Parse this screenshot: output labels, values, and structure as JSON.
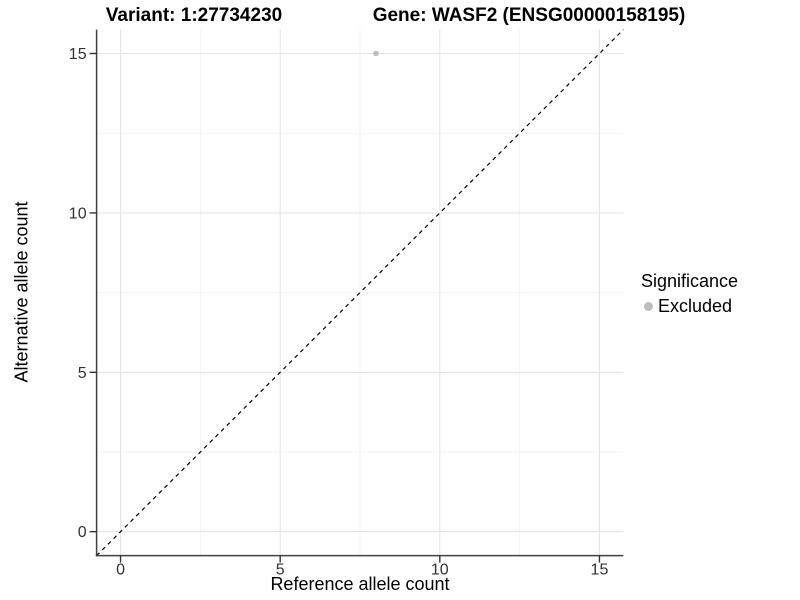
{
  "chart_data": {
    "type": "scatter",
    "title_left": "Variant: 1:27734230",
    "title_right": "Gene: WASF2 (ENSG00000158195)",
    "xlabel": "Reference allele count",
    "ylabel": "Alternative allele count",
    "xlim": [
      -0.75,
      15.75
    ],
    "ylim": [
      -0.75,
      15.75
    ],
    "x_ticks": [
      0,
      5,
      10,
      15
    ],
    "y_ticks": [
      0,
      5,
      10,
      15
    ],
    "x_minor_ticks": [
      2.5,
      7.5,
      12.5
    ],
    "y_minor_ticks": [
      2.5,
      7.5,
      12.5
    ],
    "grid": true,
    "points": [
      {
        "x": 8,
        "y": 15,
        "series": "Excluded"
      }
    ],
    "reference_line": {
      "equation": "y = x",
      "style": "dashed",
      "color": "#000000"
    },
    "legend": {
      "title": "Significance",
      "position": "right",
      "entries": [
        {
          "label": "Excluded",
          "color": "#bdbdbd"
        }
      ]
    },
    "colors": {
      "point": "#bdbdbd",
      "grid_major": "#e5e5e5",
      "grid_minor": "#f2f2f2",
      "axis_line": "#404040",
      "tick_mark": "#333333",
      "tick_label": "#333333",
      "text": "#000000"
    }
  }
}
